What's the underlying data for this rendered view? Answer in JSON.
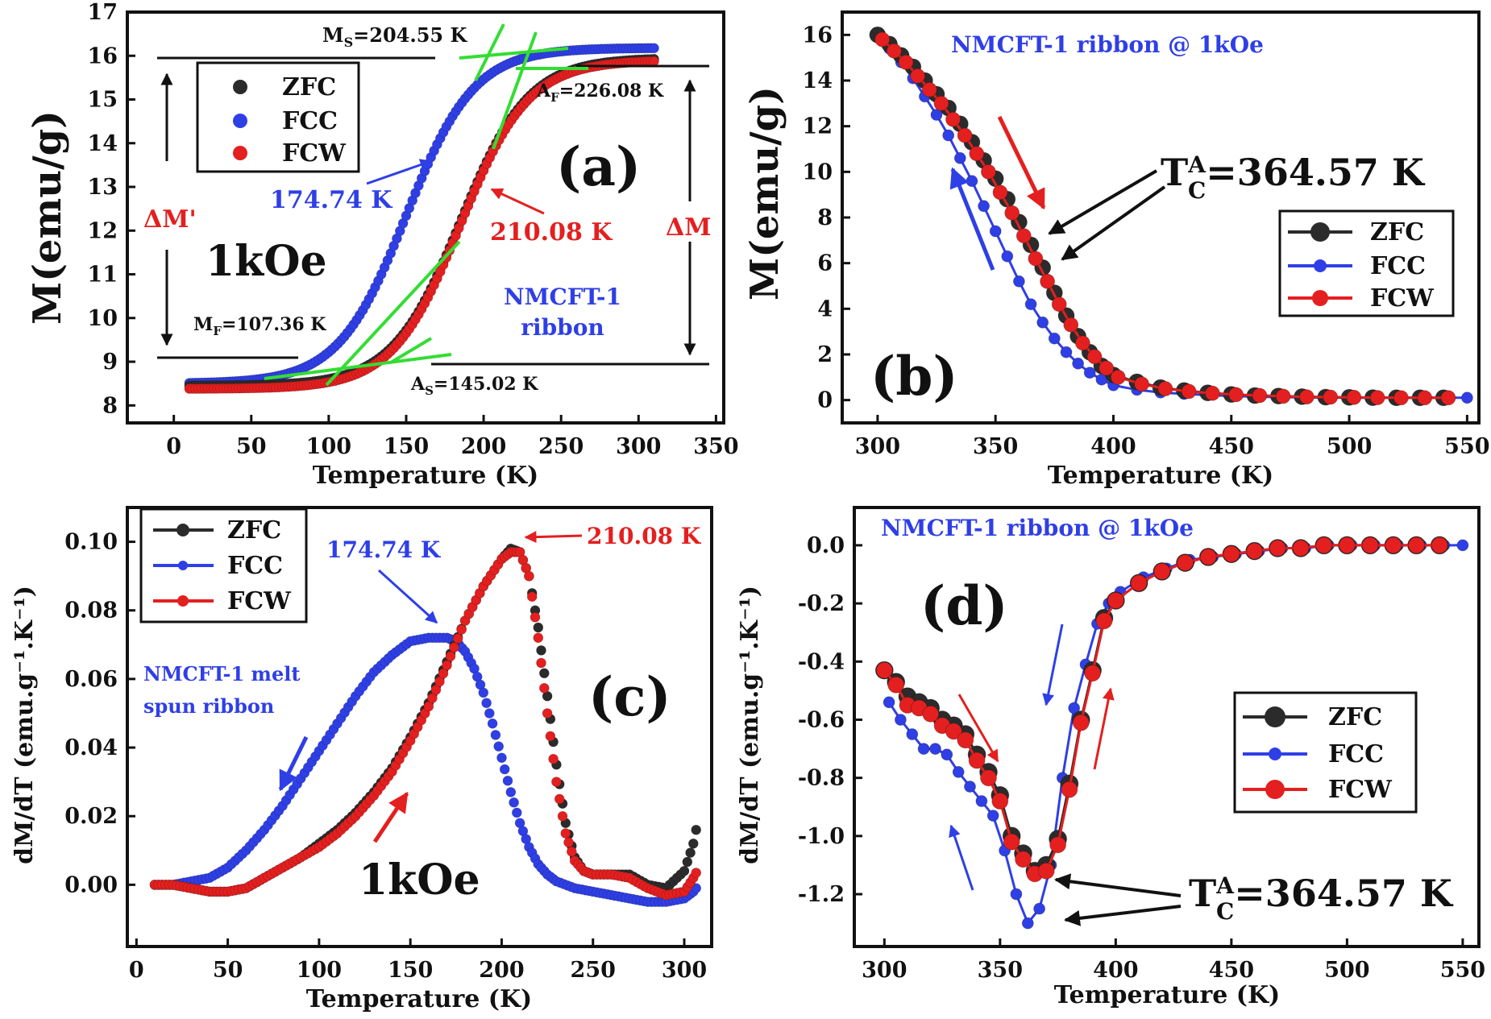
{
  "colors": {
    "zfc": "#2b2b2b",
    "fcc": "#2f3fe6",
    "fcw": "#e41f1f",
    "fit": "#33dd33",
    "axis": "#111111"
  },
  "chart_data": [
    {
      "id": "a",
      "type": "scatter",
      "panel_label": "(a)",
      "xlabel": "Temperature (K)",
      "ylabel": "M(emu/g)",
      "xlim": [
        -30,
        355
      ],
      "ylim": [
        7.6,
        17
      ],
      "xticks": [
        "0",
        "50",
        "100",
        "150",
        "200",
        "250",
        "300",
        "350"
      ],
      "yticks": [
        "8",
        "9",
        "10",
        "11",
        "12",
        "13",
        "14",
        "15",
        "16",
        "17"
      ],
      "legend": [
        "ZFC",
        "FCC",
        "FCW"
      ],
      "field_label": "1kOe",
      "sample_label": [
        "NMCFT-1",
        "ribbon"
      ],
      "ms_label": "M",
      "ms_sub": "S",
      "ms_val": "=204.55 K",
      "mf_label": "M",
      "mf_sub": "F",
      "mf_val": "=107.36 K",
      "as_label": "A",
      "as_sub": "S",
      "as_val": "=145.02 K",
      "af_label": "A",
      "af_sub": "F",
      "af_val": "=226.08 K",
      "fcc_peak_label": "174.74 K",
      "fcw_peak_label": "210.08 K",
      "dm_prime_label": "ΔM'",
      "dm_label": "ΔM",
      "series": [
        {
          "name": "ZFC",
          "x_range": [
            10,
            310
          ],
          "low": 8.45,
          "high": 15.95,
          "center": 185,
          "width": 22
        },
        {
          "name": "FCC",
          "x_range": [
            10,
            310
          ],
          "low": 8.5,
          "high": 16.18,
          "center": 150,
          "width": 22
        },
        {
          "name": "FCW",
          "x_range": [
            10,
            310
          ],
          "low": 8.38,
          "high": 15.9,
          "center": 185,
          "width": 22
        }
      ]
    },
    {
      "id": "b",
      "type": "line",
      "panel_label": "(b)",
      "xlabel": "Temperature (K)",
      "ylabel": "M(emu/g)",
      "xlim": [
        285,
        555
      ],
      "ylim": [
        -1,
        17
      ],
      "xticks": [
        "300",
        "350",
        "400",
        "450",
        "500",
        "550"
      ],
      "yticks": [
        "0",
        "2",
        "4",
        "6",
        "8",
        "10",
        "12",
        "14",
        "16"
      ],
      "legend": [
        "ZFC",
        "FCC",
        "FCW"
      ],
      "title": "NMCFT-1 ribbon @ 1kOe",
      "tc_prefix": "T",
      "tc_sup": "A",
      "tc_sub": "C",
      "tc_val": "=364.57 K",
      "series": [
        {
          "name": "ZFC",
          "x": [
            300,
            305,
            310,
            315,
            320,
            325,
            330,
            335,
            340,
            345,
            350,
            355,
            360,
            365,
            370,
            375,
            380,
            385,
            390,
            395,
            400,
            410,
            420,
            430,
            440,
            450,
            460,
            470,
            480,
            490,
            500,
            510,
            520,
            530,
            540
          ],
          "y": [
            16.0,
            15.6,
            15.1,
            14.6,
            14.0,
            13.4,
            12.8,
            12.1,
            11.3,
            10.5,
            9.7,
            8.8,
            7.8,
            6.8,
            5.8,
            4.7,
            3.7,
            2.8,
            2.1,
            1.5,
            1.1,
            0.8,
            0.55,
            0.42,
            0.32,
            0.25,
            0.2,
            0.18,
            0.15,
            0.13,
            0.12,
            0.11,
            0.1,
            0.1,
            0.1
          ]
        },
        {
          "name": "FCC",
          "x": [
            300,
            305,
            310,
            315,
            320,
            325,
            330,
            335,
            340,
            345,
            350,
            355,
            360,
            365,
            370,
            375,
            380,
            385,
            390,
            395,
            400,
            410,
            420,
            430,
            440,
            450,
            460,
            470,
            480,
            490,
            500,
            510,
            520,
            530,
            540,
            550
          ],
          "y": [
            15.9,
            15.4,
            14.8,
            14.1,
            13.3,
            12.5,
            11.6,
            10.6,
            9.6,
            8.5,
            7.4,
            6.3,
            5.2,
            4.2,
            3.4,
            2.7,
            2.1,
            1.6,
            1.2,
            0.9,
            0.65,
            0.45,
            0.33,
            0.27,
            0.22,
            0.18,
            0.15,
            0.13,
            0.12,
            0.11,
            0.1,
            0.1,
            0.1,
            0.1,
            0.1,
            0.1
          ]
        },
        {
          "name": "FCW",
          "x": [
            302,
            307,
            312,
            317,
            322,
            327,
            332,
            337,
            342,
            347,
            352,
            357,
            362,
            367,
            372,
            377,
            382,
            387,
            392,
            397,
            402,
            412,
            422,
            432,
            442,
            452,
            462,
            472,
            482,
            492,
            502,
            512,
            522,
            532,
            542
          ],
          "y": [
            15.8,
            15.3,
            14.8,
            14.2,
            13.6,
            13.0,
            12.3,
            11.6,
            10.8,
            10.0,
            9.1,
            8.2,
            7.2,
            6.2,
            5.2,
            4.2,
            3.3,
            2.5,
            1.9,
            1.4,
            1.0,
            0.7,
            0.5,
            0.38,
            0.3,
            0.24,
            0.2,
            0.17,
            0.14,
            0.13,
            0.12,
            0.11,
            0.1,
            0.1,
            0.1
          ]
        }
      ]
    },
    {
      "id": "c",
      "type": "scatter",
      "panel_label": "(c)",
      "xlabel": "Temperature (K)",
      "ylabel": "dM/dT (emu.g⁻¹.K⁻¹)",
      "xlim": [
        -5,
        315
      ],
      "ylim": [
        -0.018,
        0.11
      ],
      "xticks": [
        "0",
        "50",
        "100",
        "150",
        "200",
        "250",
        "300"
      ],
      "yticks": [
        "0.00",
        "0.02",
        "0.04",
        "0.06",
        "0.08",
        "0.10"
      ],
      "legend": [
        "ZFC",
        "FCC",
        "FCW"
      ],
      "field_label": "1kOe",
      "sample_label": [
        "NMCFT-1 melt",
        "spun ribbon"
      ],
      "fcc_peak_label": "174.74 K",
      "fcw_peak_label": "210.08 K",
      "series": [
        {
          "name": "ZFC",
          "x": [
            10,
            20,
            30,
            40,
            50,
            60,
            70,
            80,
            90,
            100,
            110,
            120,
            130,
            140,
            150,
            160,
            170,
            180,
            190,
            200,
            205,
            210,
            215,
            220,
            225,
            230,
            235,
            240,
            245,
            250,
            260,
            270,
            280,
            290,
            300,
            305,
            308
          ],
          "y": [
            0.0,
            0.0,
            -0.001,
            -0.002,
            -0.002,
            -0.001,
            0.002,
            0.005,
            0.008,
            0.012,
            0.016,
            0.021,
            0.027,
            0.034,
            0.043,
            0.053,
            0.065,
            0.077,
            0.087,
            0.095,
            0.098,
            0.097,
            0.09,
            0.075,
            0.055,
            0.035,
            0.018,
            0.008,
            0.004,
            0.003,
            0.003,
            0.003,
            0.0,
            -0.001,
            0.004,
            0.012,
            0.02
          ]
        },
        {
          "name": "FCC",
          "x": [
            10,
            20,
            30,
            40,
            50,
            60,
            70,
            80,
            90,
            100,
            110,
            120,
            130,
            140,
            150,
            160,
            170,
            175,
            180,
            185,
            190,
            195,
            200,
            205,
            210,
            215,
            220,
            225,
            230,
            240,
            250,
            260,
            270,
            280,
            290,
            300,
            305,
            308
          ],
          "y": [
            0.0,
            0.0,
            0.001,
            0.002,
            0.005,
            0.01,
            0.016,
            0.023,
            0.031,
            0.039,
            0.047,
            0.055,
            0.062,
            0.067,
            0.071,
            0.072,
            0.072,
            0.071,
            0.068,
            0.063,
            0.056,
            0.047,
            0.037,
            0.027,
            0.018,
            0.011,
            0.006,
            0.003,
            0.001,
            -0.001,
            -0.002,
            -0.003,
            -0.004,
            -0.005,
            -0.005,
            -0.004,
            -0.002,
            0.0
          ]
        },
        {
          "name": "FCW",
          "x": [
            10,
            20,
            30,
            40,
            50,
            60,
            70,
            80,
            90,
            100,
            110,
            120,
            130,
            140,
            150,
            160,
            170,
            180,
            190,
            200,
            205,
            210,
            215,
            220,
            225,
            230,
            235,
            240,
            245,
            250,
            260,
            270,
            280,
            290,
            300,
            305,
            308
          ],
          "y": [
            0.0,
            0.0,
            -0.001,
            -0.002,
            -0.002,
            -0.001,
            0.002,
            0.005,
            0.008,
            0.011,
            0.015,
            0.02,
            0.026,
            0.033,
            0.042,
            0.052,
            0.064,
            0.077,
            0.087,
            0.095,
            0.097,
            0.097,
            0.09,
            0.072,
            0.05,
            0.03,
            0.015,
            0.007,
            0.004,
            0.003,
            0.003,
            0.002,
            -0.001,
            -0.003,
            -0.002,
            0.002,
            0.005
          ]
        }
      ]
    },
    {
      "id": "d",
      "type": "line",
      "panel_label": "(d)",
      "xlabel": "Temperature (K)",
      "ylabel": "dM/dT (emu.g⁻¹.K⁻¹)",
      "xlim": [
        287,
        557
      ],
      "ylim": [
        -1.38,
        0.13
      ],
      "xticks": [
        "300",
        "350",
        "400",
        "450",
        "500",
        "550"
      ],
      "yticks": [
        "0.0",
        "-0.2",
        "-0.4",
        "-0.6",
        "-0.8",
        "-1.0",
        "-1.2"
      ],
      "legend": [
        "ZFC",
        "FCC",
        "FCW"
      ],
      "title": "NMCFT-1 ribbon @ 1kOe",
      "tc_prefix": "T",
      "tc_sup": "A",
      "tc_sub": "C",
      "tc_val": "=364.57 K",
      "series": [
        {
          "name": "ZFC",
          "x": [
            300,
            305,
            310,
            315,
            320,
            325,
            330,
            335,
            340,
            345,
            350,
            355,
            360,
            365,
            370,
            375,
            380,
            385,
            390,
            395,
            400,
            410,
            420,
            430,
            440,
            450,
            460,
            470,
            480,
            490,
            500,
            510,
            520,
            530,
            540
          ],
          "y": [
            -0.43,
            -0.47,
            -0.52,
            -0.54,
            -0.56,
            -0.6,
            -0.62,
            -0.65,
            -0.72,
            -0.78,
            -0.86,
            -1.0,
            -1.06,
            -1.12,
            -1.1,
            -1.01,
            -0.82,
            -0.6,
            -0.43,
            -0.25,
            -0.19,
            -0.13,
            -0.09,
            -0.06,
            -0.04,
            -0.03,
            -0.02,
            -0.01,
            -0.01,
            0.0,
            0.0,
            0.0,
            0.0,
            0.0,
            0.0
          ]
        },
        {
          "name": "FCC",
          "x": [
            302,
            307,
            312,
            317,
            322,
            327,
            332,
            337,
            342,
            347,
            352,
            357,
            362,
            367,
            372,
            377,
            382,
            387,
            392,
            397,
            402,
            412,
            422,
            432,
            442,
            452,
            462,
            472,
            482,
            492,
            502,
            512,
            522,
            532,
            542,
            550
          ],
          "y": [
            -0.54,
            -0.6,
            -0.65,
            -0.7,
            -0.7,
            -0.72,
            -0.78,
            -0.83,
            -0.88,
            -0.93,
            -1.05,
            -1.2,
            -1.3,
            -1.25,
            -1.1,
            -0.8,
            -0.56,
            -0.41,
            -0.27,
            -0.2,
            -0.16,
            -0.11,
            -0.08,
            -0.05,
            -0.04,
            -0.03,
            -0.02,
            -0.01,
            -0.01,
            0.0,
            0.0,
            0.0,
            0.0,
            0.0,
            0.0,
            0.0
          ]
        },
        {
          "name": "FCW",
          "x": [
            300,
            305,
            310,
            315,
            320,
            325,
            330,
            335,
            340,
            345,
            350,
            355,
            360,
            365,
            370,
            375,
            380,
            385,
            390,
            395,
            400,
            410,
            420,
            430,
            440,
            450,
            460,
            470,
            480,
            490,
            500,
            510,
            520,
            530,
            540
          ],
          "y": [
            -0.43,
            -0.48,
            -0.55,
            -0.56,
            -0.58,
            -0.62,
            -0.64,
            -0.67,
            -0.74,
            -0.8,
            -0.88,
            -1.02,
            -1.08,
            -1.13,
            -1.12,
            -1.03,
            -0.84,
            -0.61,
            -0.44,
            -0.26,
            -0.19,
            -0.13,
            -0.09,
            -0.06,
            -0.04,
            -0.03,
            -0.02,
            -0.01,
            -0.01,
            0.0,
            0.0,
            0.0,
            0.0,
            0.0,
            0.0
          ]
        }
      ]
    }
  ]
}
